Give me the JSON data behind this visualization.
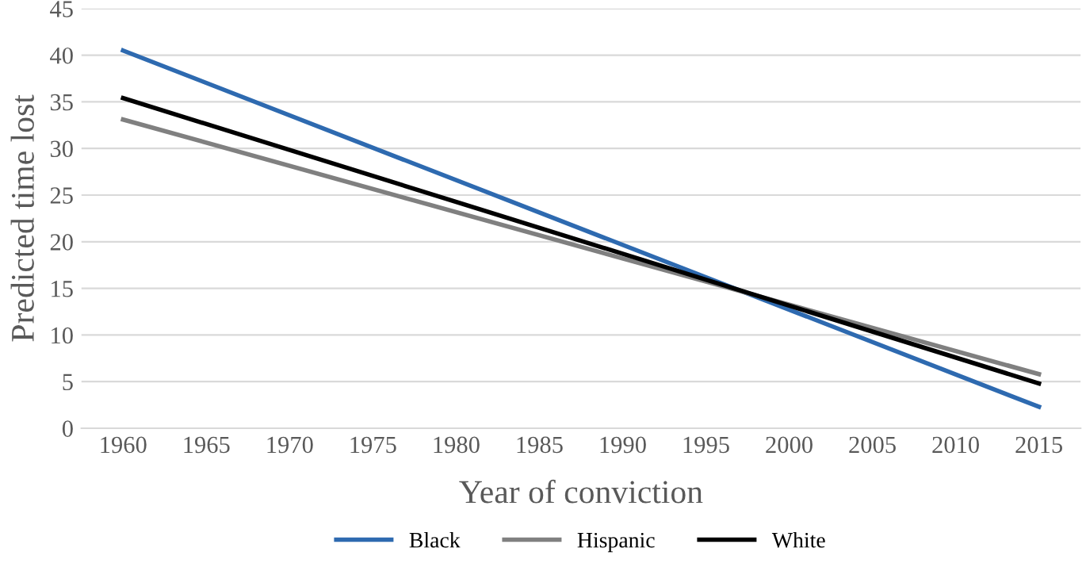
{
  "chart_data": {
    "type": "line",
    "xlabel": "Year of conviction",
    "ylabel": "Predicted time lost",
    "x": [
      1960,
      2015
    ],
    "series": [
      {
        "name": "Black",
        "color": "#2e6ab0",
        "values": [
          40.5,
          2.3
        ]
      },
      {
        "name": "Hispanic",
        "color": "#808080",
        "values": [
          33.1,
          5.8
        ]
      },
      {
        "name": "White",
        "color": "#000000",
        "values": [
          35.4,
          4.8
        ]
      }
    ],
    "xlim": [
      1957.5,
      2017.5
    ],
    "xticks": [
      1960,
      1965,
      1970,
      1975,
      1980,
      1985,
      1990,
      1995,
      2000,
      2005,
      2010,
      2015
    ],
    "ylim": [
      0,
      45
    ],
    "yticks": [
      0,
      5,
      10,
      15,
      20,
      25,
      30,
      35,
      40,
      45
    ],
    "grid": "y",
    "legend": "bottom",
    "marker": "none",
    "line_style": "solid"
  }
}
